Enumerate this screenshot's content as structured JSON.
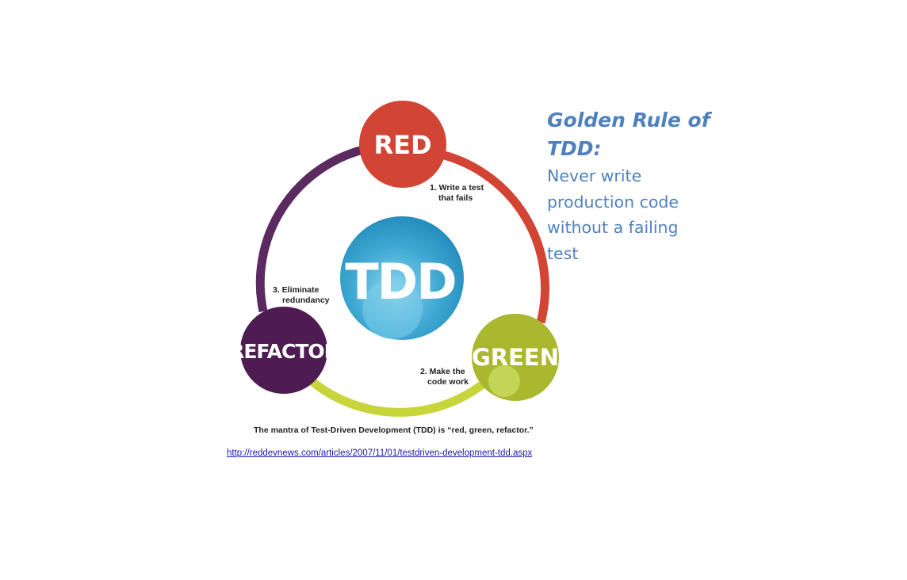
{
  "diagram": {
    "center_label": "TDD",
    "stages": [
      {
        "label": "RED",
        "color": "#d24434"
      },
      {
        "label": "GREEN",
        "color": "#a9b82e"
      },
      {
        "label": "REFACTOR",
        "color": "#4e1c52"
      }
    ],
    "steps": [
      {
        "line1": "1. Write a test",
        "line2": "that fails"
      },
      {
        "line1": "2. Make the",
        "line2": "code work"
      },
      {
        "line1": "3. Eliminate",
        "line2": "redundancy"
      }
    ],
    "caption": "The mantra of Test-Driven Development (TDD) is “red, green, refactor.”",
    "source_url": "http://reddevnews.com/articles/2007/11/01/testdriven-development-tdd.aspx"
  },
  "rule": {
    "title": "Golden Rule of TDD:",
    "body": "Never write production code without a failing test",
    "color": "#4f81bd"
  }
}
